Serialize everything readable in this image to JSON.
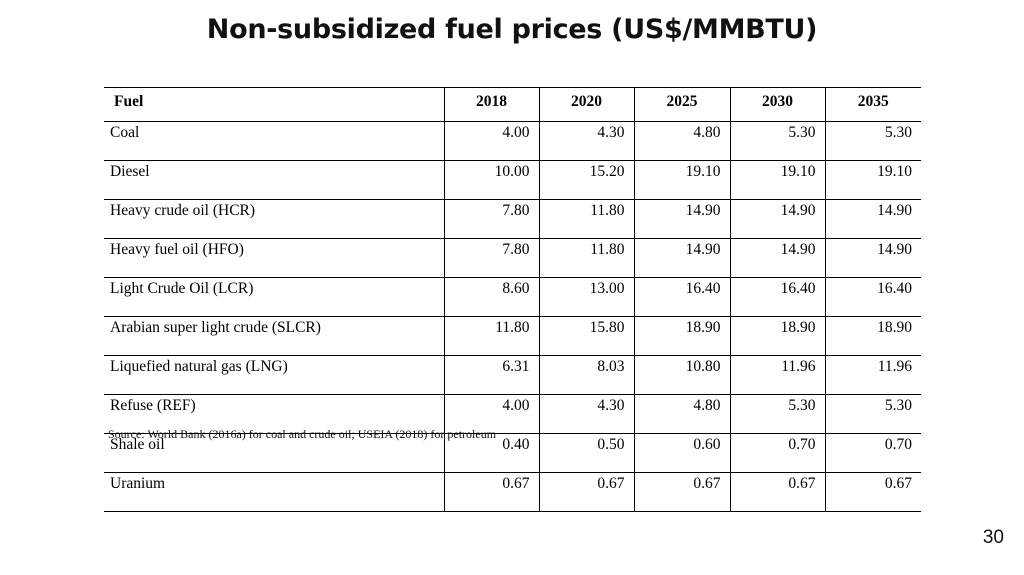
{
  "slide": {
    "title": "Non-subsidized fuel prices (US$/MMBTU)",
    "source": "Source: World Bank (2016a) for coal and crude oil; USEIA (2018) for petroleum",
    "page_number": "30"
  },
  "table": {
    "headers": [
      "Fuel",
      "2018",
      "2020",
      "2025",
      "2030",
      "2035"
    ],
    "rows": [
      {
        "fuel": "Coal",
        "values": [
          "4.00",
          "4.30",
          "4.80",
          "5.30",
          "5.30"
        ]
      },
      {
        "fuel": "Diesel",
        "values": [
          "10.00",
          "15.20",
          "19.10",
          "19.10",
          "19.10"
        ]
      },
      {
        "fuel": "Heavy crude oil (HCR)",
        "values": [
          "7.80",
          "11.80",
          "14.90",
          "14.90",
          "14.90"
        ]
      },
      {
        "fuel": "Heavy fuel oil (HFO)",
        "values": [
          "7.80",
          "11.80",
          "14.90",
          "14.90",
          "14.90"
        ]
      },
      {
        "fuel": "Light Crude Oil (LCR)",
        "values": [
          "8.60",
          "13.00",
          "16.40",
          "16.40",
          "16.40"
        ]
      },
      {
        "fuel": "Arabian super light crude (SLCR)",
        "values": [
          "11.80",
          "15.80",
          "18.90",
          "18.90",
          "18.90"
        ]
      },
      {
        "fuel": "Liquefied natural gas (LNG)",
        "values": [
          "6.31",
          "8.03",
          "10.80",
          "11.96",
          "11.96"
        ]
      },
      {
        "fuel": "Refuse  (REF)",
        "values": [
          "4.00",
          "4.30",
          "4.80",
          "5.30",
          "5.30"
        ]
      },
      {
        "fuel": "Shale oil",
        "values": [
          "0.40",
          "0.50",
          "0.60",
          "0.70",
          "0.70"
        ]
      },
      {
        "fuel": "Uranium",
        "values": [
          "0.67",
          "0.67",
          "0.67",
          "0.67",
          "0.67"
        ]
      }
    ]
  }
}
